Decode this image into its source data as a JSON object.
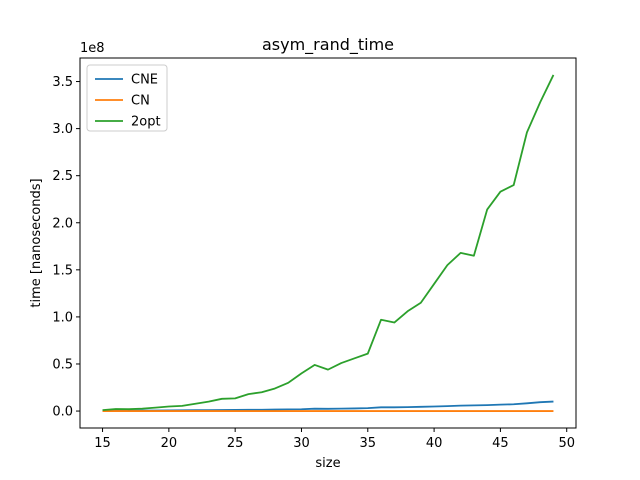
{
  "chart_data": {
    "type": "line",
    "title": "asym_rand_time",
    "xlabel": "size",
    "ylabel": "time [nanoseconds]",
    "y_offset_label": "1e8",
    "xlim": [
      13.3,
      50.7
    ],
    "ylim": [
      -0.18,
      3.75
    ],
    "x_ticks": [
      15,
      20,
      25,
      30,
      35,
      40,
      45,
      50
    ],
    "y_ticks": [
      0.0,
      0.5,
      1.0,
      1.5,
      2.0,
      2.5,
      3.0,
      3.5
    ],
    "x_tick_labels": [
      "15",
      "20",
      "25",
      "30",
      "35",
      "40",
      "45",
      "50"
    ],
    "y_tick_labels": [
      "0.0",
      "0.5",
      "1.0",
      "1.5",
      "2.0",
      "2.5",
      "3.0",
      "3.5"
    ],
    "grid": false,
    "legend_position": "top-left",
    "x": [
      15,
      16,
      17,
      18,
      19,
      20,
      21,
      22,
      23,
      24,
      25,
      26,
      27,
      28,
      29,
      30,
      31,
      32,
      33,
      34,
      35,
      36,
      37,
      38,
      39,
      40,
      41,
      42,
      43,
      44,
      45,
      46,
      47,
      48,
      49
    ],
    "series": [
      {
        "name": "CNE",
        "color": "#1f77b4",
        "values": [
          0.003,
          0.004,
          0.004,
          0.005,
          0.006,
          0.007,
          0.008,
          0.009,
          0.01,
          0.011,
          0.012,
          0.013,
          0.014,
          0.016,
          0.018,
          0.019,
          0.025,
          0.024,
          0.026,
          0.028,
          0.031,
          0.04,
          0.04,
          0.042,
          0.045,
          0.048,
          0.052,
          0.058,
          0.06,
          0.063,
          0.068,
          0.072,
          0.082,
          0.094,
          0.101
        ]
      },
      {
        "name": "CN",
        "color": "#ff7f0e",
        "values": [
          0.0,
          0.0,
          0.0,
          0.0,
          0.0,
          0.0,
          0.0,
          0.0,
          0.0,
          0.0,
          0.0,
          0.0,
          0.0,
          0.0,
          0.0,
          0.0,
          0.0,
          0.0,
          0.0,
          0.0,
          0.0,
          0.0,
          0.0,
          0.0,
          0.0,
          0.0,
          0.0,
          0.0,
          0.0,
          0.0,
          0.0,
          0.0,
          0.0,
          0.0,
          0.0
        ]
      },
      {
        "name": "2opt",
        "color": "#2ca02c",
        "values": [
          0.01,
          0.022,
          0.02,
          0.026,
          0.036,
          0.048,
          0.055,
          0.078,
          0.1,
          0.13,
          0.135,
          0.18,
          0.2,
          0.24,
          0.3,
          0.4,
          0.49,
          0.44,
          0.51,
          0.56,
          0.61,
          0.97,
          0.94,
          1.06,
          1.15,
          1.35,
          1.55,
          1.68,
          1.65,
          2.14,
          2.33,
          2.4,
          2.96,
          3.28,
          3.57
        ]
      }
    ]
  }
}
